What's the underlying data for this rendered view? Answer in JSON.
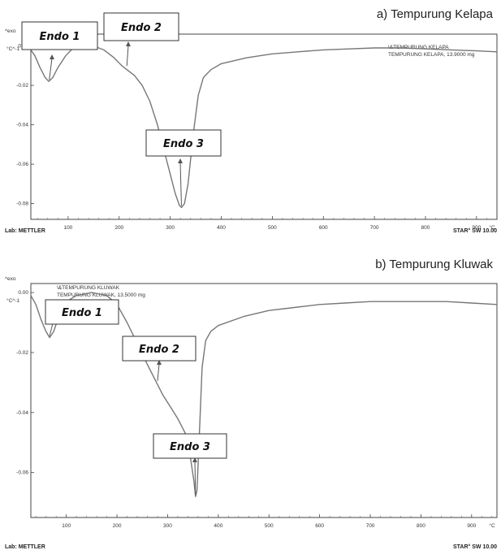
{
  "chart_data": [
    {
      "type": "line",
      "title": "a) Tempurung Kelapa",
      "top_left_label": "^exo",
      "unit_label": "°C^-1",
      "x_unit": "°C",
      "legend_lines": [
        "\\&TEMPURUNG KELAPA",
        "TEMPURUNG KELAPA, 13.9000 mg"
      ],
      "footer_left": "Lab: METTLER",
      "footer_right": "STAR° SW 10.00",
      "xlim": [
        27,
        940
      ],
      "ylim": [
        -0.088,
        0.006
      ],
      "x_ticks": [
        100,
        200,
        300,
        400,
        500,
        600,
        700,
        800,
        900
      ],
      "y_ticks": [
        {
          "value": 0.0,
          "label": "0.00"
        },
        {
          "value": -0.02,
          "label": "-0.02"
        },
        {
          "value": -0.04,
          "label": "-0.04"
        },
        {
          "value": -0.06,
          "label": "-0.06"
        },
        {
          "value": -0.08,
          "label": "-0.08"
        }
      ],
      "x": [
        27,
        35,
        45,
        55,
        62,
        70,
        80,
        95,
        110,
        130,
        150,
        170,
        190,
        205,
        215,
        230,
        245,
        260,
        275,
        290,
        300,
        310,
        318,
        322,
        328,
        335,
        345,
        355,
        365,
        380,
        400,
        450,
        500,
        550,
        600,
        650,
        700,
        750,
        800,
        850,
        900,
        940
      ],
      "y": [
        -0.002,
        -0.005,
        -0.011,
        -0.016,
        -0.018,
        -0.016,
        -0.011,
        -0.005,
        -0.001,
        0.0,
        0.0,
        -0.002,
        -0.006,
        -0.01,
        -0.012,
        -0.015,
        -0.02,
        -0.028,
        -0.04,
        -0.055,
        -0.065,
        -0.075,
        -0.081,
        -0.082,
        -0.08,
        -0.07,
        -0.045,
        -0.025,
        -0.016,
        -0.012,
        -0.009,
        -0.006,
        -0.004,
        -0.003,
        -0.002,
        -0.0015,
        -0.001,
        -0.001,
        -0.0015,
        -0.002,
        -0.0025,
        -0.003
      ],
      "annotations": [
        {
          "label": "Endo 1",
          "x": 63,
          "y": -0.018
        },
        {
          "label": "Endo 2",
          "x": 215,
          "y": -0.011
        },
        {
          "label": "Endo 3",
          "x": 322,
          "y": -0.082
        }
      ]
    },
    {
      "type": "line",
      "title": "b) Tempurung Kluwak",
      "top_left_label": "^exo",
      "unit_label": "°C^-1",
      "x_unit": "°C",
      "legend_lines": [
        "\\&TEMPURUNG KLUWAK",
        "TEMPURUNG KLUWAK, 13.5000 mg"
      ],
      "footer_left": "Lab: METTLER",
      "footer_right": "STAR° SW 10.00",
      "xlim": [
        30,
        950
      ],
      "ylim": [
        -0.075,
        0.003
      ],
      "x_ticks": [
        100,
        200,
        300,
        400,
        500,
        600,
        700,
        800,
        900
      ],
      "y_ticks": [
        {
          "value": 0.0,
          "label": "0.00"
        },
        {
          "value": -0.02,
          "label": "-0.02"
        },
        {
          "value": -0.04,
          "label": "-0.04"
        },
        {
          "value": -0.06,
          "label": "-0.06"
        }
      ],
      "x": [
        30,
        40,
        50,
        60,
        67,
        75,
        85,
        100,
        120,
        150,
        180,
        200,
        220,
        240,
        260,
        275,
        290,
        305,
        320,
        335,
        345,
        352,
        355,
        358,
        362,
        368,
        375,
        385,
        400,
        450,
        500,
        550,
        600,
        650,
        700,
        750,
        800,
        850,
        900,
        950
      ],
      "y": [
        -0.001,
        -0.004,
        -0.009,
        -0.013,
        -0.015,
        -0.013,
        -0.008,
        -0.003,
        -0.001,
        0.0,
        -0.001,
        -0.004,
        -0.01,
        -0.017,
        -0.024,
        -0.029,
        -0.034,
        -0.038,
        -0.042,
        -0.047,
        -0.055,
        -0.063,
        -0.068,
        -0.066,
        -0.05,
        -0.025,
        -0.016,
        -0.013,
        -0.011,
        -0.008,
        -0.006,
        -0.005,
        -0.004,
        -0.0035,
        -0.003,
        -0.003,
        -0.003,
        -0.003,
        -0.0035,
        -0.004
      ],
      "annotations": [
        {
          "label": "Endo 1",
          "x": 67,
          "y": -0.015
        },
        {
          "label": "Endo 2",
          "x": 280,
          "y": -0.03
        },
        {
          "label": "Endo 3",
          "x": 355,
          "y": -0.068
        }
      ]
    }
  ]
}
